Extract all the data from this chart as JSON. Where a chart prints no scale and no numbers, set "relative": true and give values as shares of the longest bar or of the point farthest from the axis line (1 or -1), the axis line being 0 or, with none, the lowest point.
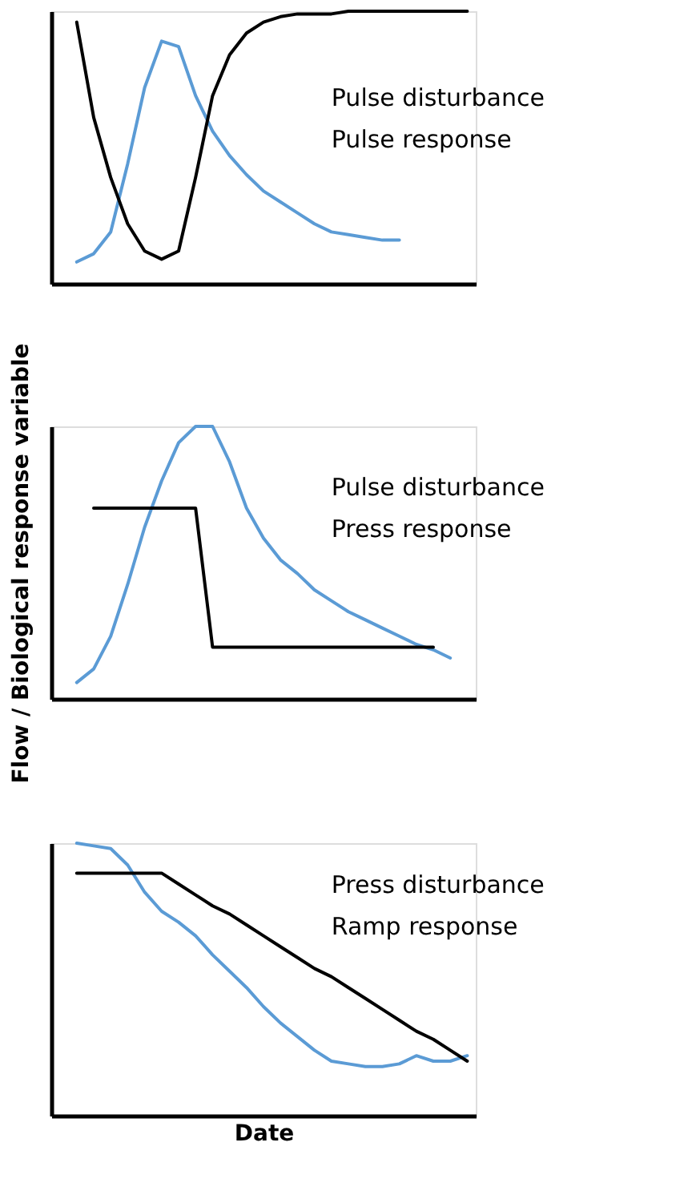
{
  "chart_data": [
    {
      "type": "line",
      "relative": true,
      "tick_labels": false,
      "categories": [
        null,
        null,
        null,
        null,
        null,
        null,
        null,
        null,
        null,
        null,
        null,
        null,
        null,
        null,
        null,
        null,
        null,
        null,
        null,
        null,
        null,
        null,
        null,
        null,
        null
      ],
      "series": [
        {
          "color": "#5b9bd5",
          "values": [
            null,
            0.08,
            0.11,
            0.19,
            0.44,
            0.72,
            0.89,
            0.87,
            0.69,
            0.56,
            0.47,
            0.4,
            0.34,
            0.3,
            0.26,
            0.22,
            0.19,
            0.18,
            0.17,
            0.16,
            0.16,
            null,
            null,
            null,
            null
          ]
        },
        {
          "color": "#000000",
          "values": [
            null,
            0.96,
            0.61,
            0.39,
            0.22,
            0.12,
            0.09,
            0.12,
            0.39,
            0.69,
            0.84,
            0.92,
            0.96,
            0.98,
            0.99,
            0.99,
            0.99,
            1.0,
            1.0,
            1.0,
            1.0,
            1.0,
            1.0,
            1.0,
            1.0
          ]
        }
      ],
      "annotations": [
        "Pulse disturbance",
        "Pulse response"
      ]
    },
    {
      "type": "line",
      "relative": true,
      "tick_labels": false,
      "ylabel": "Flow / Biological response variable",
      "categories": [
        null,
        null,
        null,
        null,
        null,
        null,
        null,
        null,
        null,
        null,
        null,
        null,
        null,
        null,
        null,
        null,
        null,
        null,
        null,
        null,
        null,
        null,
        null,
        null,
        null
      ],
      "series": [
        {
          "color": "#5b9bd5",
          "values": [
            null,
            0.06,
            0.11,
            0.23,
            0.42,
            0.63,
            0.8,
            0.94,
            1.0,
            1.0,
            0.87,
            0.7,
            0.59,
            0.51,
            0.46,
            0.4,
            0.36,
            0.32,
            0.29,
            0.26,
            0.23,
            0.2,
            0.18,
            0.15,
            null
          ]
        },
        {
          "color": "#000000",
          "values": [
            null,
            null,
            0.7,
            0.7,
            0.7,
            0.7,
            0.7,
            0.7,
            0.7,
            0.19,
            0.19,
            0.19,
            0.19,
            0.19,
            0.19,
            0.19,
            0.19,
            0.19,
            0.19,
            0.19,
            0.19,
            0.19,
            0.19,
            null,
            null
          ]
        }
      ],
      "annotations": [
        "Pulse disturbance",
        "Press response"
      ]
    },
    {
      "type": "line",
      "relative": true,
      "tick_labels": false,
      "xlabel": "Date",
      "categories": [
        null,
        null,
        null,
        null,
        null,
        null,
        null,
        null,
        null,
        null,
        null,
        null,
        null,
        null,
        null,
        null,
        null,
        null,
        null,
        null,
        null,
        null,
        null,
        null,
        null
      ],
      "series": [
        {
          "color": "#5b9bd5",
          "values": [
            null,
            1.0,
            0.99,
            0.98,
            0.92,
            0.82,
            0.75,
            0.71,
            0.66,
            0.59,
            0.53,
            0.47,
            0.4,
            0.34,
            0.29,
            0.24,
            0.2,
            0.19,
            0.18,
            0.18,
            0.19,
            0.22,
            0.2,
            0.2,
            0.22
          ]
        },
        {
          "color": "#000000",
          "values": [
            null,
            0.89,
            0.89,
            0.89,
            0.89,
            0.89,
            0.89,
            0.85,
            0.81,
            0.77,
            0.74,
            0.7,
            0.66,
            0.62,
            0.58,
            0.54,
            0.51,
            0.47,
            0.43,
            0.39,
            0.35,
            0.31,
            0.28,
            0.24,
            0.2
          ]
        }
      ],
      "annotations": [
        "Press disturbance",
        "Ramp response"
      ]
    }
  ]
}
